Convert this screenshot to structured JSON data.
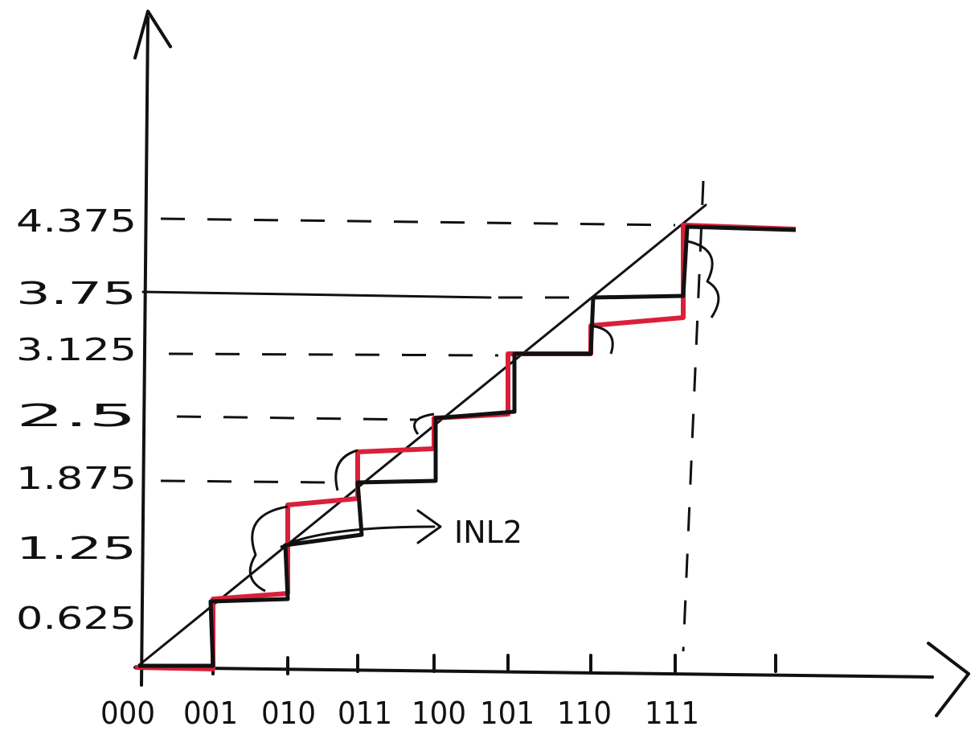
{
  "y_labels": [
    "4.375",
    "3.75",
    "3.125",
    "2.5",
    "1.875",
    "1.25",
    "0.625"
  ],
  "x_labels": [
    "000",
    "001",
    "010",
    "011",
    "100",
    "101",
    "110",
    "111"
  ],
  "annotation": "INL2"
}
